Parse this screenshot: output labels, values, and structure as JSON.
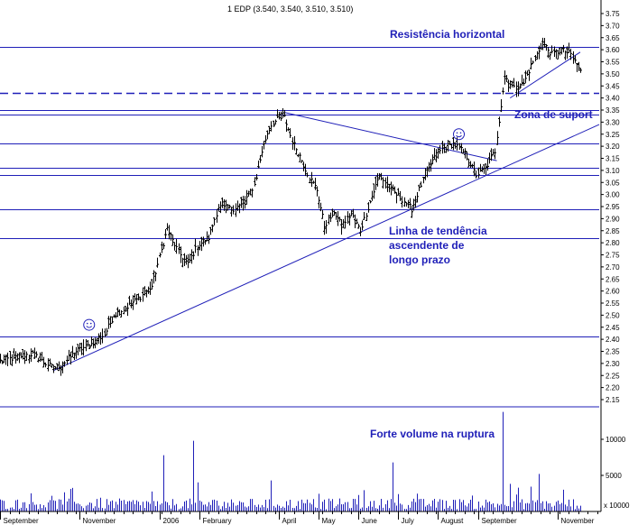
{
  "chart_data": {
    "type": "bar",
    "title": "1 EDP (3.540, 3.540, 3.510, 3.510)",
    "price_axis": {
      "ticks": [
        "3.75",
        "3.70",
        "3.65",
        "3.60",
        "3.55",
        "3.50",
        "3.45",
        "3.40",
        "3.35",
        "3.30",
        "3.25",
        "3.20",
        "3.15",
        "3.10",
        "3.05",
        "3.00",
        "2.95",
        "2.90",
        "2.85",
        "2.80",
        "2.75",
        "2.70",
        "2.65",
        "2.60",
        "2.55",
        "2.50",
        "2.45",
        "2.40",
        "2.35",
        "2.30",
        "2.25",
        "2.20",
        "2.15"
      ],
      "range": [
        2.15,
        3.75
      ]
    },
    "volume_axis": {
      "ticks": [
        "10000",
        "5000"
      ],
      "unit_label": "x 10000",
      "range": [
        0,
        14000
      ]
    },
    "x_labels": [
      "September",
      "November",
      "2006",
      "February",
      "April",
      "May",
      "June",
      "July",
      "August",
      "September",
      "November"
    ],
    "months": [
      {
        "label": "September",
        "index": 0
      },
      {
        "label": "November",
        "index": 42
      },
      {
        "label": "2006",
        "index": 84
      },
      {
        "label": "February",
        "index": 105
      },
      {
        "label": "April",
        "index": 147
      },
      {
        "label": "May",
        "index": 168
      },
      {
        "label": "June",
        "index": 189
      },
      {
        "label": "July",
        "index": 210
      },
      {
        "label": "August",
        "index": 231
      },
      {
        "label": "September",
        "index": 252
      },
      {
        "label": "November",
        "index": 294
      }
    ],
    "trading_days": 316,
    "price_path": [
      [
        0,
        2.31
      ],
      [
        10,
        2.33
      ],
      [
        17,
        2.34
      ],
      [
        22,
        2.31
      ],
      [
        28,
        2.28
      ],
      [
        32,
        2.29
      ],
      [
        40,
        2.35
      ],
      [
        48,
        2.38
      ],
      [
        55,
        2.42
      ],
      [
        60,
        2.5
      ],
      [
        66,
        2.53
      ],
      [
        73,
        2.57
      ],
      [
        80,
        2.62
      ],
      [
        84,
        2.74
      ],
      [
        88,
        2.86
      ],
      [
        94,
        2.76
      ],
      [
        99,
        2.71
      ],
      [
        104,
        2.79
      ],
      [
        110,
        2.82
      ],
      [
        115,
        2.95
      ],
      [
        122,
        2.94
      ],
      [
        128,
        2.96
      ],
      [
        134,
        3.04
      ],
      [
        138,
        3.18
      ],
      [
        142,
        3.28
      ],
      [
        146,
        3.31
      ],
      [
        150,
        3.32
      ],
      [
        154,
        3.22
      ],
      [
        158,
        3.16
      ],
      [
        163,
        3.07
      ],
      [
        167,
        3.02
      ],
      [
        171,
        2.87
      ],
      [
        176,
        2.93
      ],
      [
        180,
        2.87
      ],
      [
        185,
        2.92
      ],
      [
        190,
        2.85
      ],
      [
        195,
        2.97
      ],
      [
        200,
        3.08
      ],
      [
        206,
        3.02
      ],
      [
        212,
        2.98
      ],
      [
        217,
        2.94
      ],
      [
        222,
        3.04
      ],
      [
        228,
        3.14
      ],
      [
        233,
        3.19
      ],
      [
        239,
        3.21
      ],
      [
        245,
        3.17
      ],
      [
        251,
        3.08
      ],
      [
        256,
        3.11
      ],
      [
        261,
        3.18
      ],
      [
        263,
        3.31
      ],
      [
        266,
        3.49
      ],
      [
        271,
        3.44
      ],
      [
        276,
        3.46
      ],
      [
        281,
        3.55
      ],
      [
        286,
        3.63
      ],
      [
        291,
        3.58
      ],
      [
        296,
        3.6
      ],
      [
        301,
        3.58
      ],
      [
        306,
        3.51
      ]
    ],
    "volume_spikes": [
      {
        "index": 86,
        "value": 7800
      },
      {
        "index": 102,
        "value": 9800
      },
      {
        "index": 143,
        "value": 4300
      },
      {
        "index": 207,
        "value": 6800
      },
      {
        "index": 265,
        "value": 13800
      },
      {
        "index": 284,
        "value": 5200
      }
    ],
    "horizontal_lines": [
      {
        "value": 3.61,
        "style": "solid"
      },
      {
        "value": 3.42,
        "style": "dashed"
      },
      {
        "value": 3.35,
        "style": "solid"
      },
      {
        "value": 3.33,
        "style": "solid"
      },
      {
        "value": 3.21,
        "style": "solid"
      },
      {
        "value": 3.11,
        "style": "solid"
      },
      {
        "value": 3.08,
        "style": "solid"
      },
      {
        "value": 2.94,
        "style": "solid"
      },
      {
        "value": 2.82,
        "style": "solid"
      },
      {
        "value": 2.41,
        "style": "solid"
      }
    ],
    "trend_lines": [
      {
        "from": [
          28,
          2.27
        ],
        "to": [
          316,
          3.29
        ]
      },
      {
        "from": [
          150,
          3.34
        ],
        "to": [
          262,
          3.14
        ]
      },
      {
        "from": [
          269,
          3.4
        ],
        "to": [
          306,
          3.59
        ]
      }
    ],
    "smiley_markers": [
      {
        "index": 47,
        "value": 2.46
      },
      {
        "index": 242,
        "value": 3.25
      }
    ],
    "annotations": {
      "resistencia": "Resistência horizontal",
      "suporte": "Zona de suport",
      "tendencia": [
        "Linha de tendência",
        "ascendente de",
        "longo prazo"
      ],
      "volume": "Forte volume na ruptura"
    },
    "grid": false,
    "legend": "none"
  },
  "colors": {
    "line": "#1f1fb8",
    "bars": "#000000",
    "volume": "#1f1fb8",
    "annotation_text": "#1f1fb8"
  }
}
